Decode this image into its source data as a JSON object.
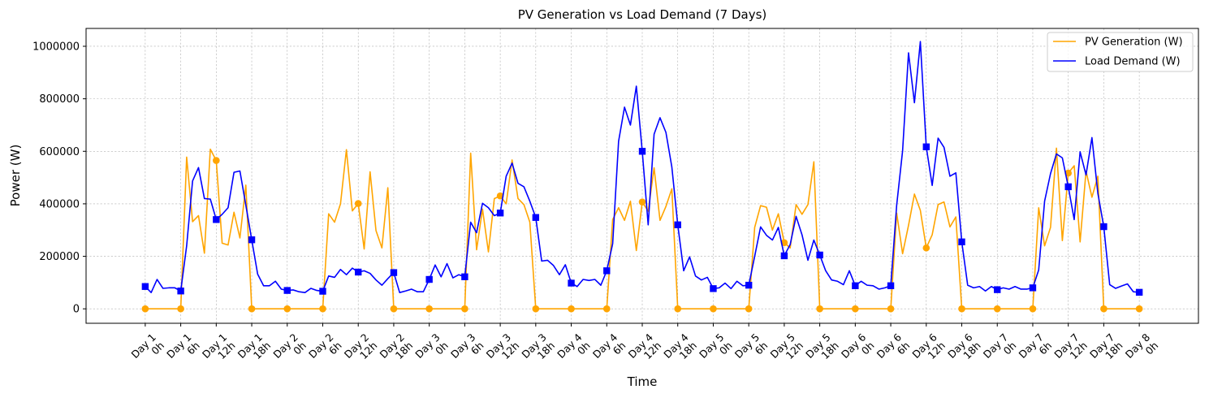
{
  "chart_data": {
    "type": "line",
    "title": "PV Generation vs Load Demand (7 Days)",
    "xlabel": "Time",
    "ylabel": "Power (W)",
    "ylim": [
      -55000,
      1068000
    ],
    "yticks": [
      0,
      200000,
      400000,
      600000,
      800000,
      1000000
    ],
    "ytick_labels": [
      "0",
      "200000",
      "400000",
      "600000",
      "800000",
      "1000000"
    ],
    "xlim_hours": [
      -10,
      178
    ],
    "xtick_hours": [
      0,
      6,
      12,
      18,
      24,
      30,
      36,
      42,
      48,
      54,
      60,
      66,
      72,
      78,
      84,
      90,
      96,
      102,
      108,
      114,
      120,
      126,
      132,
      138,
      144,
      150,
      156,
      162,
      168
    ],
    "xtick_labels": [
      [
        "Day 1",
        "0h"
      ],
      [
        "Day 1",
        "6h"
      ],
      [
        "Day 1",
        "12h"
      ],
      [
        "Day 1",
        "18h"
      ],
      [
        "Day 2",
        "0h"
      ],
      [
        "Day 2",
        "6h"
      ],
      [
        "Day 2",
        "12h"
      ],
      [
        "Day 2",
        "18h"
      ],
      [
        "Day 3",
        "0h"
      ],
      [
        "Day 3",
        "6h"
      ],
      [
        "Day 3",
        "12h"
      ],
      [
        "Day 3",
        "18h"
      ],
      [
        "Day 4",
        "0h"
      ],
      [
        "Day 4",
        "6h"
      ],
      [
        "Day 4",
        "12h"
      ],
      [
        "Day 4",
        "18h"
      ],
      [
        "Day 5",
        "0h"
      ],
      [
        "Day 5",
        "6h"
      ],
      [
        "Day 5",
        "12h"
      ],
      [
        "Day 5",
        "18h"
      ],
      [
        "Day 6",
        "0h"
      ],
      [
        "Day 6",
        "6h"
      ],
      [
        "Day 6",
        "12h"
      ],
      [
        "Day 6",
        "18h"
      ],
      [
        "Day 7",
        "0h"
      ],
      [
        "Day 7",
        "6h"
      ],
      [
        "Day 7",
        "12h"
      ],
      [
        "Day 7",
        "18h"
      ],
      [
        "Day 8",
        "0h"
      ]
    ],
    "grid": true,
    "legend_position": "top-right",
    "marker_every_hours": 6,
    "series": [
      {
        "name": "PV Generation (W)",
        "color": "#ffa500",
        "marker": "circle",
        "points": [
          [
            0,
            0
          ],
          [
            6,
            0
          ],
          [
            7,
            578000
          ],
          [
            8,
            332000
          ],
          [
            9,
            355000
          ],
          [
            10,
            212000
          ],
          [
            11,
            608000
          ],
          [
            12,
            565000
          ],
          [
            13,
            250000
          ],
          [
            14,
            243000
          ],
          [
            15,
            368000
          ],
          [
            16,
            270000
          ],
          [
            17,
            471000
          ],
          [
            18,
            0
          ],
          [
            24,
            0
          ],
          [
            30,
            0
          ],
          [
            31,
            362000
          ],
          [
            32,
            330000
          ],
          [
            33,
            400000
          ],
          [
            34,
            606000
          ],
          [
            35,
            373000
          ],
          [
            36,
            401000
          ],
          [
            37,
            228000
          ],
          [
            38,
            522000
          ],
          [
            39,
            298000
          ],
          [
            40,
            232000
          ],
          [
            41,
            461000
          ],
          [
            42,
            0
          ],
          [
            48,
            0
          ],
          [
            54,
            0
          ],
          [
            55,
            593000
          ],
          [
            56,
            225000
          ],
          [
            57,
            380000
          ],
          [
            58,
            217000
          ],
          [
            59,
            420000
          ],
          [
            60,
            430000
          ],
          [
            61,
            400000
          ],
          [
            62,
            567000
          ],
          [
            63,
            420000
          ],
          [
            64,
            397000
          ],
          [
            65,
            330000
          ],
          [
            66,
            0
          ],
          [
            72,
            0
          ],
          [
            78,
            0
          ],
          [
            79,
            340000
          ],
          [
            80,
            385000
          ],
          [
            81,
            337000
          ],
          [
            82,
            410000
          ],
          [
            83,
            222000
          ],
          [
            84,
            407000
          ],
          [
            85,
            372000
          ],
          [
            86,
            537000
          ],
          [
            87,
            337000
          ],
          [
            88,
            390000
          ],
          [
            89,
            457000
          ],
          [
            90,
            0
          ],
          [
            96,
            0
          ],
          [
            102,
            0
          ],
          [
            103,
            310000
          ],
          [
            104,
            393000
          ],
          [
            105,
            387000
          ],
          [
            106,
            300000
          ],
          [
            107,
            362000
          ],
          [
            108,
            252000
          ],
          [
            109,
            232000
          ],
          [
            110,
            397000
          ],
          [
            111,
            360000
          ],
          [
            112,
            397000
          ],
          [
            113,
            560000
          ],
          [
            114,
            0
          ],
          [
            120,
            0
          ],
          [
            126,
            0
          ],
          [
            127,
            365000
          ],
          [
            128,
            210000
          ],
          [
            129,
            318000
          ],
          [
            130,
            437000
          ],
          [
            131,
            375000
          ],
          [
            132,
            232000
          ],
          [
            133,
            282000
          ],
          [
            134,
            397000
          ],
          [
            135,
            407000
          ],
          [
            136,
            312000
          ],
          [
            137,
            350000
          ],
          [
            138,
            0
          ],
          [
            144,
            0
          ],
          [
            150,
            0
          ],
          [
            151,
            385000
          ],
          [
            152,
            240000
          ],
          [
            153,
            310000
          ],
          [
            154,
            612000
          ],
          [
            155,
            260000
          ],
          [
            156,
            517000
          ],
          [
            157,
            545000
          ],
          [
            158,
            255000
          ],
          [
            159,
            525000
          ],
          [
            160,
            425000
          ],
          [
            161,
            505000
          ],
          [
            162,
            0
          ],
          [
            168,
            0
          ]
        ]
      },
      {
        "name": "Load Demand (W)",
        "color": "#0000ff",
        "marker": "square",
        "points": [
          [
            0,
            85000
          ],
          [
            1,
            62000
          ],
          [
            2,
            112000
          ],
          [
            3,
            78000
          ],
          [
            4,
            80000
          ],
          [
            5,
            80000
          ],
          [
            6,
            68000
          ],
          [
            7,
            240000
          ],
          [
            8,
            487000
          ],
          [
            9,
            538000
          ],
          [
            10,
            420000
          ],
          [
            11,
            418000
          ],
          [
            12,
            340000
          ],
          [
            13,
            360000
          ],
          [
            14,
            385000
          ],
          [
            15,
            520000
          ],
          [
            16,
            525000
          ],
          [
            17,
            395000
          ],
          [
            18,
            263000
          ],
          [
            19,
            132000
          ],
          [
            20,
            88000
          ],
          [
            21,
            88000
          ],
          [
            22,
            105000
          ],
          [
            23,
            75000
          ],
          [
            24,
            70000
          ],
          [
            25,
            72000
          ],
          [
            26,
            65000
          ],
          [
            27,
            62000
          ],
          [
            28,
            78000
          ],
          [
            29,
            70000
          ],
          [
            30,
            67000
          ],
          [
            31,
            125000
          ],
          [
            32,
            120000
          ],
          [
            33,
            150000
          ],
          [
            34,
            130000
          ],
          [
            35,
            155000
          ],
          [
            36,
            140000
          ],
          [
            37,
            145000
          ],
          [
            38,
            135000
          ],
          [
            39,
            110000
          ],
          [
            40,
            90000
          ],
          [
            41,
            115000
          ],
          [
            42,
            138000
          ],
          [
            43,
            62000
          ],
          [
            44,
            68000
          ],
          [
            45,
            75000
          ],
          [
            46,
            65000
          ],
          [
            47,
            65000
          ],
          [
            48,
            112000
          ],
          [
            49,
            167000
          ],
          [
            50,
            122000
          ],
          [
            51,
            172000
          ],
          [
            52,
            118000
          ],
          [
            53,
            130000
          ],
          [
            54,
            122000
          ],
          [
            55,
            330000
          ],
          [
            56,
            290000
          ],
          [
            57,
            402000
          ],
          [
            58,
            385000
          ],
          [
            59,
            355000
          ],
          [
            60,
            365000
          ],
          [
            61,
            505000
          ],
          [
            62,
            555000
          ],
          [
            63,
            478000
          ],
          [
            64,
            465000
          ],
          [
            65,
            410000
          ],
          [
            66,
            348000
          ],
          [
            67,
            182000
          ],
          [
            68,
            185000
          ],
          [
            69,
            165000
          ],
          [
            70,
            130000
          ],
          [
            71,
            168000
          ],
          [
            72,
            98000
          ],
          [
            73,
            85000
          ],
          [
            74,
            112000
          ],
          [
            75,
            108000
          ],
          [
            76,
            112000
          ],
          [
            77,
            90000
          ],
          [
            78,
            145000
          ],
          [
            79,
            248000
          ],
          [
            80,
            638000
          ],
          [
            81,
            768000
          ],
          [
            82,
            700000
          ],
          [
            83,
            848000
          ],
          [
            84,
            600000
          ],
          [
            85,
            320000
          ],
          [
            86,
            665000
          ],
          [
            87,
            728000
          ],
          [
            88,
            672000
          ],
          [
            89,
            540000
          ],
          [
            90,
            320000
          ],
          [
            91,
            145000
          ],
          [
            92,
            198000
          ],
          [
            93,
            125000
          ],
          [
            94,
            110000
          ],
          [
            95,
            120000
          ],
          [
            96,
            77000
          ],
          [
            97,
            80000
          ],
          [
            98,
            98000
          ],
          [
            99,
            77000
          ],
          [
            100,
            105000
          ],
          [
            101,
            88000
          ],
          [
            102,
            90000
          ],
          [
            103,
            200000
          ],
          [
            104,
            312000
          ],
          [
            105,
            280000
          ],
          [
            106,
            262000
          ],
          [
            107,
            310000
          ],
          [
            108,
            202000
          ],
          [
            109,
            245000
          ],
          [
            110,
            352000
          ],
          [
            111,
            282000
          ],
          [
            112,
            185000
          ],
          [
            113,
            262000
          ],
          [
            114,
            205000
          ],
          [
            115,
            145000
          ],
          [
            116,
            110000
          ],
          [
            117,
            105000
          ],
          [
            118,
            92000
          ],
          [
            119,
            145000
          ],
          [
            120,
            88000
          ],
          [
            121,
            105000
          ],
          [
            122,
            90000
          ],
          [
            123,
            88000
          ],
          [
            124,
            75000
          ],
          [
            125,
            80000
          ],
          [
            126,
            88000
          ],
          [
            127,
            395000
          ],
          [
            128,
            602000
          ],
          [
            129,
            975000
          ],
          [
            130,
            785000
          ],
          [
            131,
            1018000
          ],
          [
            132,
            617000
          ],
          [
            133,
            470000
          ],
          [
            134,
            650000
          ],
          [
            135,
            615000
          ],
          [
            136,
            505000
          ],
          [
            137,
            518000
          ],
          [
            138,
            255000
          ],
          [
            139,
            90000
          ],
          [
            140,
            80000
          ],
          [
            141,
            85000
          ],
          [
            142,
            68000
          ],
          [
            143,
            85000
          ],
          [
            144,
            73000
          ],
          [
            145,
            80000
          ],
          [
            146,
            75000
          ],
          [
            147,
            85000
          ],
          [
            148,
            75000
          ],
          [
            149,
            75000
          ],
          [
            150,
            80000
          ],
          [
            151,
            148000
          ],
          [
            152,
            410000
          ],
          [
            153,
            515000
          ],
          [
            154,
            590000
          ],
          [
            155,
            575000
          ],
          [
            156,
            465000
          ],
          [
            157,
            340000
          ],
          [
            158,
            598000
          ],
          [
            159,
            510000
          ],
          [
            160,
            652000
          ],
          [
            161,
            440000
          ],
          [
            162,
            313000
          ],
          [
            163,
            92000
          ],
          [
            164,
            78000
          ],
          [
            165,
            87000
          ],
          [
            166,
            95000
          ],
          [
            167,
            65000
          ],
          [
            168,
            63000
          ]
        ]
      }
    ]
  }
}
